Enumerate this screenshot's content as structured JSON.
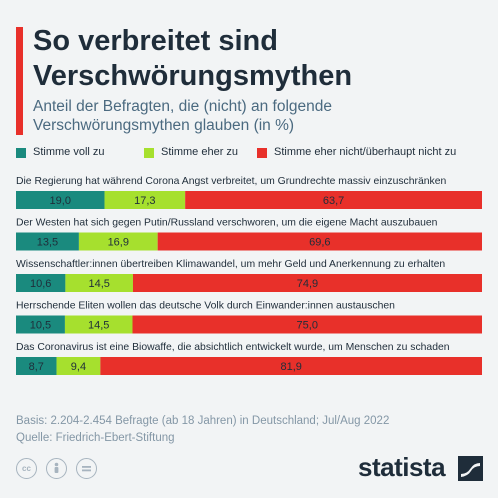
{
  "title": "So verbreitet sind Verschwörungsmythen",
  "subtitle": "Anteil der Befragten, die (nicht) an folgende Verschwörungsmythen glauben (in %)",
  "legend": [
    {
      "label": "Stimme voll zu",
      "color": "#1a8a7e"
    },
    {
      "label": "Stimme eher zu",
      "color": "#a6e02e"
    },
    {
      "label": "Stimme eher nicht/überhaupt nicht zu",
      "color": "#e8302a"
    }
  ],
  "chart_data": {
    "type": "bar",
    "orientation": "horizontal",
    "stacked": true,
    "unit": "%",
    "categories": [
      "Die Regierung hat während Corona Angst verbreitet, um Grundrechte massiv einzuschränken",
      "Der Westen hat sich gegen Putin/Russland verschworen, um die eigene Macht auszubauen",
      "Wissenschaftler:innen übertreiben Klimawandel, um mehr Geld und Anerkennung zu erhalten",
      "Herrschende Eliten wollen das deutsche Volk durch Einwander:innen austauschen",
      "Das Coronavirus ist eine Biowaffe, die absichtlich entwickelt wurde, um Menschen zu schaden"
    ],
    "series": [
      {
        "name": "Stimme voll zu",
        "values": [
          19.0,
          13.5,
          10.6,
          10.5,
          8.7
        ],
        "labels": [
          "19,0",
          "13,5",
          "10,6",
          "10,5",
          "8,7"
        ],
        "color": "#1a8a7e"
      },
      {
        "name": "Stimme eher zu",
        "values": [
          17.3,
          16.9,
          14.5,
          14.5,
          9.4
        ],
        "labels": [
          "17,3",
          "16,9",
          "14,5",
          "14,5",
          "9,4"
        ],
        "color": "#a6e02e"
      },
      {
        "name": "Stimme eher nicht/überhaupt nicht zu",
        "values": [
          63.7,
          69.6,
          74.9,
          75.0,
          81.9
        ],
        "labels": [
          "63,7",
          "69,6",
          "74,9",
          "75,0",
          "81,9"
        ],
        "color": "#e8302a"
      }
    ],
    "xlim": [
      0,
      100
    ],
    "grid": false,
    "legend_position": "top-left"
  },
  "footer": {
    "basis": "Basis: 2.204-2.454 Befragte (ab 18 Jahren) in Deutschland; Jul/Aug 2022",
    "source": "Quelle: Friedrich-Ebert-Stiftung",
    "brand": "statista",
    "cc_icons": [
      "cc-icon",
      "attribution-icon",
      "no-derivatives-icon"
    ]
  }
}
